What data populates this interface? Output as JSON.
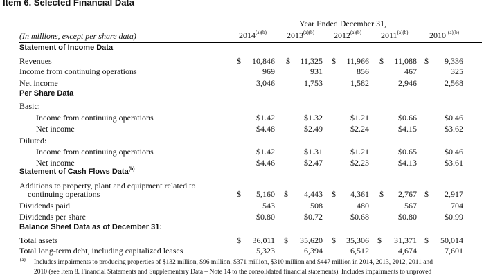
{
  "title": "Item 6.   Selected Financial Data",
  "header": {
    "period": "Year Ended December 31,",
    "units": "(In millions, except per share data)",
    "years": [
      {
        "year": "2014",
        "note": "(a)(b)"
      },
      {
        "year": "2013",
        "note": "(a)(b)"
      },
      {
        "year": "2012",
        "note": "(a)(b)"
      },
      {
        "year": "2011",
        "note": "(a)(b)"
      },
      {
        "year": "2010",
        "note": "(a)(b)"
      }
    ]
  },
  "sections": {
    "income": "Statement of Income Data",
    "per_share": "Per Share Data",
    "cash_flows": "Statement of Cash Flows Data",
    "cash_flows_note": "(b)",
    "balance": "Balance Sheet Data as of December 31:"
  },
  "labels": {
    "basic": "Basic:",
    "diluted": "Diluted:"
  },
  "rows": {
    "revenues": {
      "label": "Revenues",
      "values": [
        "10,846",
        "11,325",
        "11,966",
        "11,088",
        "9,336"
      ]
    },
    "inc_cont": {
      "label": "Income from continuing operations",
      "values": [
        "969",
        "931",
        "856",
        "467",
        "325"
      ]
    },
    "net_income": {
      "label": "Net income",
      "values": [
        "3,046",
        "1,753",
        "1,582",
        "2,946",
        "2,568"
      ]
    },
    "basic_cont": {
      "label": "Income from continuing operations",
      "values": [
        "$1.42",
        "$1.32",
        "$1.21",
        "$0.66",
        "$0.46"
      ]
    },
    "basic_net": {
      "label": "Net income",
      "values": [
        "$4.48",
        "$2.49",
        "$2.24",
        "$4.15",
        "$3.62"
      ]
    },
    "dil_cont": {
      "label": "Income from continuing operations",
      "values": [
        "$1.42",
        "$1.31",
        "$1.21",
        "$0.65",
        "$0.46"
      ]
    },
    "dil_net": {
      "label": "Net income",
      "values": [
        "$4.46",
        "$2.47",
        "$2.23",
        "$4.13",
        "$3.61"
      ]
    },
    "additions": {
      "label1": "Additions to property, plant and equipment related to",
      "label2": "continuing operations",
      "values": [
        "5,160",
        "4,443",
        "4,361",
        "2,767",
        "2,917"
      ]
    },
    "div_paid": {
      "label": "Dividends paid",
      "values": [
        "543",
        "508",
        "480",
        "567",
        "704"
      ]
    },
    "div_share": {
      "label": "Dividends per share",
      "values": [
        "$0.80",
        "$0.72",
        "$0.68",
        "$0.80",
        "$0.99"
      ]
    },
    "total_assets": {
      "label": "Total assets",
      "values": [
        "36,011",
        "35,620",
        "35,306",
        "31,371",
        "50,014"
      ]
    },
    "ltd": {
      "label": "Total long-term debt, including capitalized leases",
      "values": [
        "5,323",
        "6,394",
        "6,512",
        "4,674",
        "7,601"
      ]
    }
  },
  "dollar_sign": "$",
  "footnote": {
    "marker": "(a)",
    "line1": "Includes impairments to producing properties of $132 million, $96 million, $371 million, $310 million and $447 million in 2014, 2013, 2012, 2011 and",
    "line2": "2010 (see Item 8. Financial Statements and Supplementary Data – Note 14 to the consolidated financial statements). Includes impairments to unproved"
  }
}
